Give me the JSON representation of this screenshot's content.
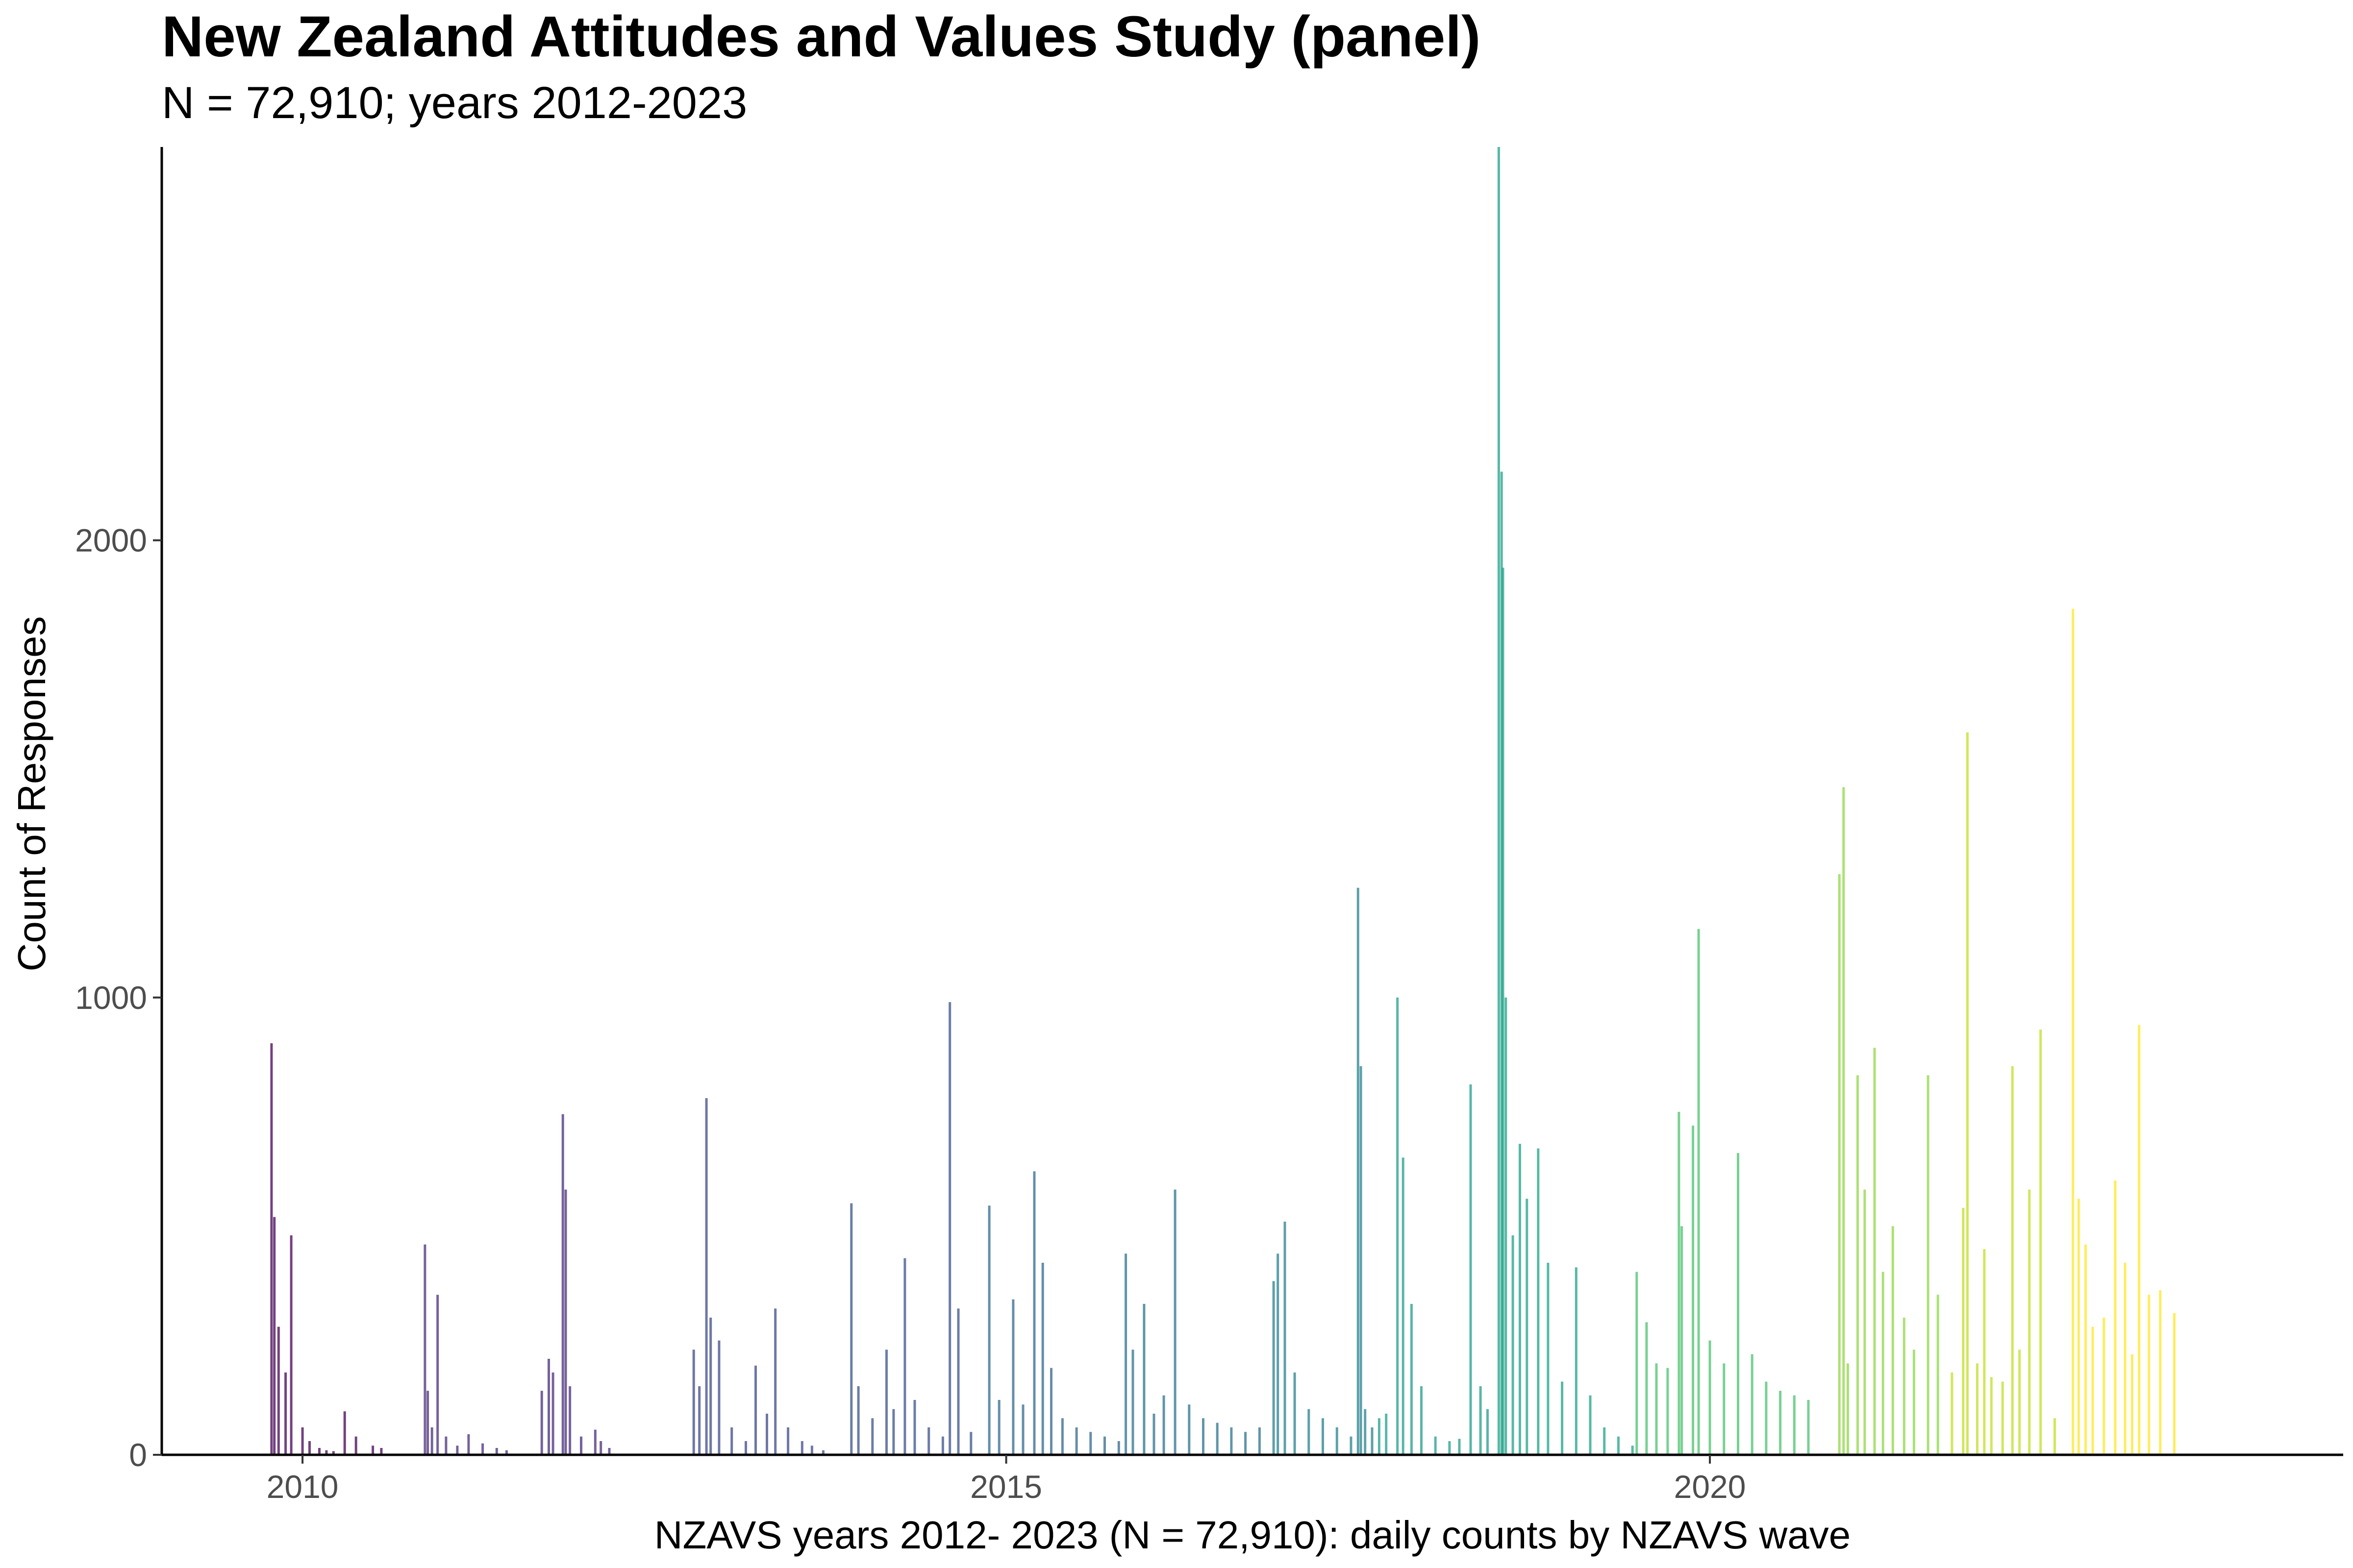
{
  "chart_data": {
    "type": "bar",
    "title": "New Zealand Attitudes and Values Study (panel)",
    "subtitle": "N = 72,910; years 2012-2023",
    "xlabel": "NZAVS years 2012- 2023 (N = 72,910): daily counts by NZAVS wave",
    "ylabel": "Count of Responses",
    "x_ticks": [
      "2010",
      "2015",
      "2020"
    ],
    "y_ticks": [
      "0",
      "1000",
      "2000"
    ],
    "xlim": [
      2009.0,
      2024.5
    ],
    "ylim": [
      0,
      2860
    ],
    "grid": false,
    "legend": "none",
    "color_scale": "viridis",
    "palette": [
      "#440154",
      "#482878",
      "#3E4989",
      "#31688E",
      "#26828E",
      "#1F9E89",
      "#35B779",
      "#6DCD59",
      "#B4DE2C",
      "#FDE725"
    ],
    "series": [
      {
        "name": "",
        "x": [
          2009.78,
          2009.8,
          2009.83,
          2009.88,
          2009.92,
          2010.0,
          2010.05,
          2010.12,
          2010.17,
          2010.22,
          2010.3,
          2010.38,
          2010.5,
          2010.56
        ],
        "values": [
          900,
          520,
          280,
          180,
          480,
          60,
          30,
          15,
          10,
          8,
          95,
          40,
          20,
          15
        ],
        "color": "#440154"
      },
      {
        "name": "",
        "x": [
          2010.87,
          2010.89,
          2010.92,
          2010.96,
          2011.02,
          2011.1,
          2011.18,
          2011.28,
          2011.38,
          2011.45
        ],
        "values": [
          460,
          140,
          60,
          350,
          40,
          20,
          45,
          25,
          15,
          10
        ],
        "color": "#472D7B"
      },
      {
        "name": "",
        "x": [
          2011.7,
          2011.75,
          2011.78,
          2011.85,
          2011.87,
          2011.9,
          2011.98,
          2012.08,
          2012.12,
          2012.18
        ],
        "values": [
          140,
          210,
          180,
          745,
          580,
          150,
          40,
          55,
          30,
          15
        ],
        "color": "#472D7B"
      },
      {
        "name": "",
        "x": [
          2012.78,
          2012.82,
          2012.87,
          2012.9,
          2012.96,
          2013.05,
          2013.15,
          2013.22,
          2013.3,
          2013.36,
          2013.45,
          2013.55,
          2013.62,
          2013.7
        ],
        "values": [
          230,
          150,
          780,
          300,
          250,
          60,
          30,
          195,
          90,
          320,
          60,
          30,
          20,
          10
        ],
        "color": "#3E4989"
      },
      {
        "name": "",
        "x": [
          2013.9,
          2013.95,
          2014.05,
          2014.15,
          2014.2,
          2014.28,
          2014.35,
          2014.45,
          2014.55,
          2014.6,
          2014.66,
          2014.75
        ],
        "values": [
          550,
          150,
          80,
          230,
          100,
          430,
          120,
          60,
          40,
          990,
          320,
          50
        ],
        "color": "#3B528B"
      },
      {
        "name": "",
        "x": [
          2014.88,
          2014.95,
          2015.05,
          2015.12,
          2015.2,
          2015.26,
          2015.32,
          2015.4,
          2015.5,
          2015.6,
          2015.7,
          2015.8
        ],
        "values": [
          545,
          120,
          340,
          110,
          620,
          420,
          190,
          80,
          60,
          50,
          40,
          30
        ],
        "color": "#31688E"
      },
      {
        "name": "",
        "x": [
          2015.85,
          2015.9,
          2015.98,
          2016.05,
          2016.12,
          2016.2,
          2016.3,
          2016.4,
          2016.5,
          2016.6,
          2016.7,
          2016.8
        ],
        "values": [
          440,
          230,
          330,
          90,
          130,
          580,
          110,
          80,
          70,
          60,
          50,
          60
        ],
        "color": "#2C728E"
      },
      {
        "name": "",
        "x": [
          2016.9,
          2016.93,
          2016.98,
          2017.05,
          2017.15,
          2017.25,
          2017.35,
          2017.45,
          2017.5,
          2017.52,
          2017.55,
          2017.6
        ],
        "values": [
          380,
          440,
          510,
          180,
          100,
          80,
          60,
          40,
          1240,
          850,
          100,
          60
        ],
        "color": "#26828E"
      },
      {
        "name": "",
        "x": [
          2017.65,
          2017.7,
          2017.78,
          2017.82,
          2017.88,
          2017.95,
          2018.05,
          2018.15,
          2018.22,
          2018.3,
          2018.37,
          2018.42
        ],
        "values": [
          80,
          90,
          1000,
          650,
          330,
          150,
          40,
          30,
          35,
          810,
          150,
          100
        ],
        "color": "#1F9E89"
      },
      {
        "name": "",
        "x": [
          2018.5,
          2018.52,
          2018.53,
          2018.55,
          2018.6,
          2018.65,
          2018.7,
          2018.78,
          2018.85,
          2018.95,
          2019.05,
          2019.15,
          2019.25,
          2019.35,
          2019.45
        ],
        "values": [
          2860,
          2150,
          1940,
          1000,
          480,
          680,
          560,
          670,
          420,
          160,
          410,
          130,
          60,
          40,
          20
        ],
        "color": "#1FA187"
      },
      {
        "name": "",
        "x": [
          2019.48,
          2019.55,
          2019.62,
          2019.7,
          2019.78,
          2019.8,
          2019.88,
          2019.92,
          2020.0,
          2020.1,
          2020.2,
          2020.3,
          2020.4,
          2020.5,
          2020.6,
          2020.7
        ],
        "values": [
          400,
          290,
          200,
          190,
          750,
          500,
          720,
          1150,
          250,
          200,
          660,
          220,
          160,
          140,
          130,
          120
        ],
        "color": "#4AC16D"
      },
      {
        "name": "",
        "x": [
          2020.92,
          2020.95,
          2020.98,
          2021.05,
          2021.1,
          2021.17,
          2021.23,
          2021.3,
          2021.38,
          2021.45,
          2021.55,
          2021.62
        ],
        "values": [
          1270,
          1460,
          200,
          830,
          580,
          890,
          400,
          500,
          300,
          230,
          830,
          350
        ],
        "color": "#8FD744"
      },
      {
        "name": "",
        "x": [
          2021.72,
          2021.8,
          2021.83,
          2021.9,
          2021.95,
          2022.0,
          2022.08,
          2022.15,
          2022.2,
          2022.27,
          2022.35,
          2022.45
        ],
        "values": [
          180,
          540,
          1580,
          200,
          450,
          170,
          160,
          850,
          230,
          580,
          930,
          80
        ],
        "color": "#C2DF23"
      },
      {
        "name": "",
        "x": [
          2022.58,
          2022.62,
          2022.67,
          2022.72,
          2022.8,
          2022.88,
          2022.95,
          2023.0,
          2023.05,
          2023.12,
          2023.2,
          2023.3
        ],
        "values": [
          1850,
          560,
          460,
          280,
          300,
          600,
          420,
          220,
          940,
          350,
          360,
          310
        ],
        "color": "#FDE725"
      }
    ]
  }
}
